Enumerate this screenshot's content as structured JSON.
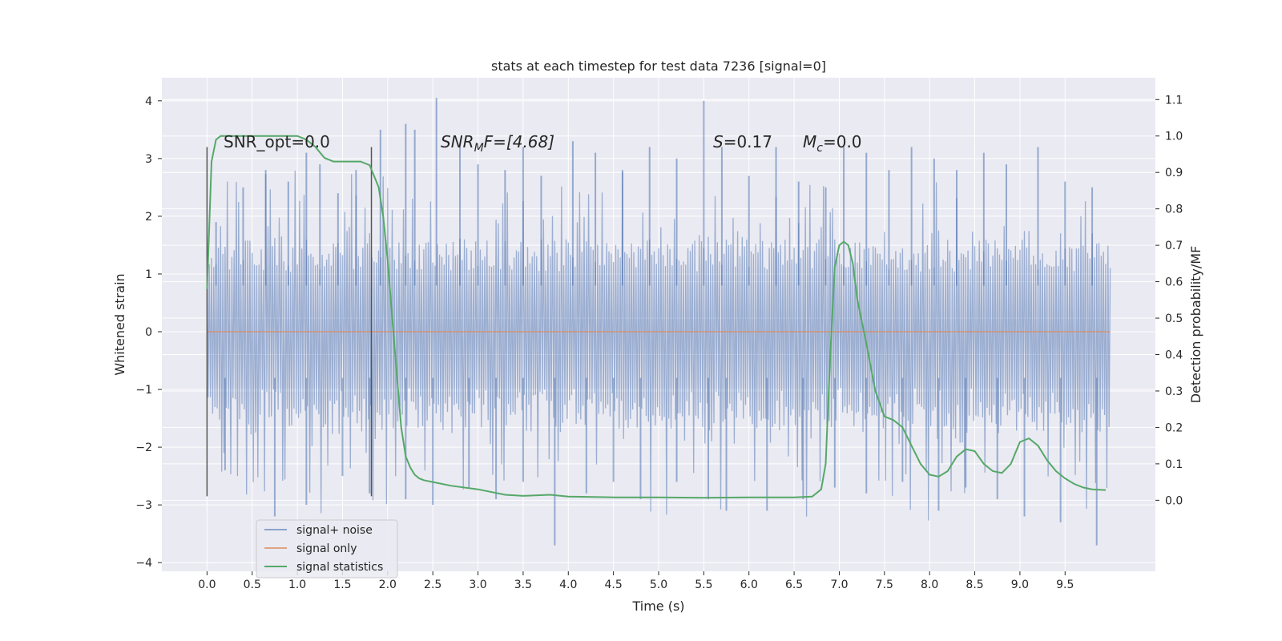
{
  "chart_data": {
    "type": "line",
    "title": "stats at each timestep for test data 7236 [signal=0]",
    "xlabel": "Time (s)",
    "ylabel_left": "Whitened strain",
    "ylabel_right": "Detection probability/MF",
    "xlim": [
      -0.5,
      10.5
    ],
    "ylim_left": [
      -4.15,
      4.4
    ],
    "ylim_right": [
      -0.195,
      1.16
    ],
    "x_ticks": [
      0.0,
      0.5,
      1.0,
      1.5,
      2.0,
      2.5,
      3.0,
      3.5,
      4.0,
      4.5,
      5.0,
      5.5,
      6.0,
      6.5,
      7.0,
      7.5,
      8.0,
      8.5,
      9.0,
      9.5
    ],
    "x_tick_labels": [
      "0.0",
      "0.5",
      "1.0",
      "1.5",
      "2.0",
      "2.5",
      "3.0",
      "3.5",
      "4.0",
      "4.5",
      "5.0",
      "5.5",
      "6.0",
      "6.5",
      "7.0",
      "7.5",
      "8.0",
      "8.5",
      "9.0",
      "9.5"
    ],
    "y_ticks_left": [
      4,
      3,
      2,
      1,
      0,
      -1,
      -2,
      -3,
      -4
    ],
    "y_tick_labels_left": [
      "4",
      "3",
      "2",
      "1",
      "0",
      "−1",
      "−2",
      "−3",
      "−4"
    ],
    "y_ticks_right": [
      1.1,
      1.0,
      0.9,
      0.8,
      0.7,
      0.6,
      0.5,
      0.4,
      0.3,
      0.2,
      0.1,
      0.0
    ],
    "y_tick_labels_right": [
      "1.1",
      "1.0",
      "0.9",
      "0.8",
      "0.7",
      "0.6",
      "0.5",
      "0.4",
      "0.3",
      "0.2",
      "0.1",
      "0.0"
    ],
    "grid": true,
    "legend_position": "lower-left",
    "annotations": {
      "snr_opt": "SNR_opt=0.0",
      "snr_mf_base": "SNR",
      "snr_mf_sub": "M",
      "snr_mf_rest": "F=[4.68]",
      "s_label": "S",
      "s_value": "=0.17",
      "mc_label": "M",
      "mc_sub": "c",
      "mc_value": "=0.0"
    },
    "vertical_markers": {
      "x": [
        0.0,
        1.82
      ],
      "y_range": [
        -2.85,
        3.2
      ]
    },
    "series": [
      {
        "name": "signal+ noise",
        "color": "#4c72b0",
        "kind": "noise",
        "x_range": [
          0.0,
          10.0
        ],
        "typical_band": [
          -1.6,
          1.6
        ],
        "peaks": [
          [
            0.1,
            1.9
          ],
          [
            0.4,
            2.5
          ],
          [
            0.65,
            2.8
          ],
          [
            0.9,
            2.6
          ],
          [
            1.1,
            3.1
          ],
          [
            1.25,
            2.9
          ],
          [
            1.45,
            2.4
          ],
          [
            1.65,
            2.8
          ],
          [
            1.92,
            3.5
          ],
          [
            2.2,
            3.6
          ],
          [
            2.3,
            3.5
          ],
          [
            2.54,
            4.05
          ],
          [
            2.8,
            3.2
          ],
          [
            3.0,
            2.9
          ],
          [
            3.3,
            2.8
          ],
          [
            3.5,
            3.2
          ],
          [
            3.7,
            2.7
          ],
          [
            4.05,
            3.3
          ],
          [
            4.3,
            3.1
          ],
          [
            4.6,
            2.8
          ],
          [
            4.9,
            3.2
          ],
          [
            5.2,
            3.0
          ],
          [
            5.5,
            4.0
          ],
          [
            5.7,
            3.2
          ],
          [
            6.0,
            2.7
          ],
          [
            6.3,
            3.2
          ],
          [
            6.55,
            2.6
          ],
          [
            6.85,
            2.5
          ],
          [
            7.05,
            3.2
          ],
          [
            7.3,
            3.1
          ],
          [
            7.55,
            2.8
          ],
          [
            7.8,
            3.2
          ],
          [
            8.05,
            3.0
          ],
          [
            8.3,
            2.8
          ],
          [
            8.6,
            3.1
          ],
          [
            8.85,
            2.9
          ],
          [
            9.2,
            3.2
          ],
          [
            9.5,
            2.6
          ],
          [
            9.8,
            2.5
          ]
        ],
        "troughs": [
          [
            0.2,
            -2.4
          ],
          [
            0.75,
            -3.2
          ],
          [
            1.1,
            -3.0
          ],
          [
            1.5,
            -2.5
          ],
          [
            1.8,
            -2.8
          ],
          [
            2.2,
            -2.9
          ],
          [
            2.5,
            -3.0
          ],
          [
            2.9,
            -2.7
          ],
          [
            3.2,
            -2.9
          ],
          [
            3.5,
            -2.6
          ],
          [
            3.85,
            -3.7
          ],
          [
            4.2,
            -2.8
          ],
          [
            4.5,
            -2.6
          ],
          [
            4.8,
            -2.9
          ],
          [
            5.2,
            -2.6
          ],
          [
            5.55,
            -2.9
          ],
          [
            5.75,
            -3.1
          ],
          [
            6.2,
            -3.1
          ],
          [
            6.6,
            -2.9
          ],
          [
            6.95,
            -2.7
          ],
          [
            7.3,
            -2.8
          ],
          [
            7.7,
            -2.6
          ],
          [
            8.1,
            -3.1
          ],
          [
            8.4,
            -2.7
          ],
          [
            8.75,
            -2.9
          ],
          [
            9.05,
            -3.2
          ],
          [
            9.45,
            -3.3
          ],
          [
            9.85,
            -3.7
          ]
        ]
      },
      {
        "name": "signal only",
        "color": "#dd8452",
        "kind": "line",
        "axis": "left",
        "x": [
          0.0,
          10.0
        ],
        "y": [
          0.0,
          0.0
        ]
      },
      {
        "name": "signal statistics",
        "color": "#55a868",
        "kind": "line",
        "axis": "right",
        "x": [
          0.0,
          0.05,
          0.1,
          0.15,
          0.2,
          0.3,
          0.5,
          0.8,
          1.0,
          1.1,
          1.2,
          1.3,
          1.4,
          1.5,
          1.6,
          1.7,
          1.8,
          1.9,
          1.95,
          2.0,
          2.05,
          2.1,
          2.15,
          2.2,
          2.25,
          2.3,
          2.35,
          2.4,
          2.5,
          2.7,
          3.0,
          3.3,
          3.5,
          3.8,
          4.0,
          4.5,
          5.0,
          5.5,
          6.0,
          6.5,
          6.7,
          6.8,
          6.85,
          6.9,
          6.95,
          7.0,
          7.05,
          7.1,
          7.15,
          7.2,
          7.3,
          7.4,
          7.5,
          7.6,
          7.7,
          7.8,
          7.9,
          8.0,
          8.1,
          8.2,
          8.3,
          8.4,
          8.5,
          8.6,
          8.7,
          8.8,
          8.9,
          9.0,
          9.1,
          9.2,
          9.3,
          9.4,
          9.5,
          9.6,
          9.7,
          9.8,
          9.95
        ],
        "y": [
          0.58,
          0.93,
          0.99,
          1.0,
          1.0,
          1.0,
          1.0,
          1.0,
          1.0,
          0.99,
          0.97,
          0.94,
          0.93,
          0.93,
          0.93,
          0.93,
          0.92,
          0.86,
          0.78,
          0.66,
          0.5,
          0.35,
          0.2,
          0.12,
          0.09,
          0.07,
          0.06,
          0.055,
          0.05,
          0.04,
          0.03,
          0.015,
          0.012,
          0.015,
          0.01,
          0.008,
          0.008,
          0.007,
          0.008,
          0.008,
          0.01,
          0.03,
          0.1,
          0.4,
          0.64,
          0.7,
          0.71,
          0.7,
          0.65,
          0.55,
          0.43,
          0.3,
          0.23,
          0.22,
          0.2,
          0.15,
          0.1,
          0.07,
          0.065,
          0.08,
          0.12,
          0.14,
          0.135,
          0.1,
          0.08,
          0.075,
          0.1,
          0.16,
          0.17,
          0.15,
          0.11,
          0.08,
          0.06,
          0.045,
          0.035,
          0.03,
          0.028
        ]
      }
    ]
  }
}
